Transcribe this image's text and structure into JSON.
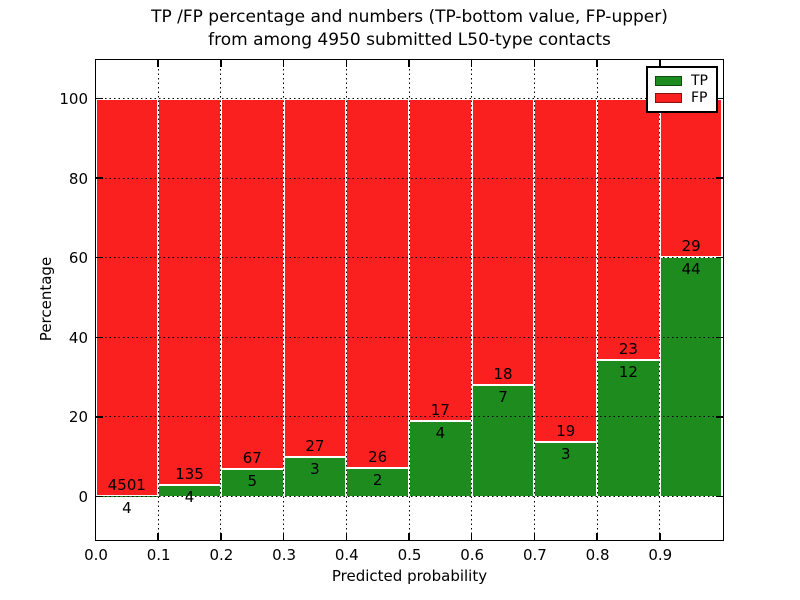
{
  "figure": {
    "title_line1": "TP /FP percentage and numbers (TP-bottom value, FP-upper)",
    "title_line2": "from among 4950 submitted L50-type contacts"
  },
  "chart_data": {
    "type": "bar",
    "subtype": "stacked-percentage",
    "title": "TP /FP percentage and numbers (TP-bottom value, FP-upper) from among 4950 submitted L50-type contacts",
    "xlabel": "Predicted probability",
    "ylabel": "Percentage",
    "xlim": [
      0.0,
      1.0
    ],
    "ylim": [
      -10.8,
      109.8
    ],
    "x_ticks": [
      "0.0",
      "0.1",
      "0.2",
      "0.3",
      "0.4",
      "0.5",
      "0.6",
      "0.7",
      "0.8",
      "0.9"
    ],
    "y_ticks": [
      0,
      20,
      40,
      60,
      80,
      100
    ],
    "grid": "dotted",
    "total_contacts": 4950,
    "legend_position": "upper-right",
    "series": [
      {
        "name": "TP",
        "color": "#1e8b1e",
        "values": [
          4,
          4,
          5,
          3,
          2,
          4,
          7,
          3,
          12,
          44
        ]
      },
      {
        "name": "FP",
        "color": "#fa2020",
        "values": [
          4501,
          135,
          67,
          27,
          26,
          17,
          18,
          19,
          23,
          29
        ]
      }
    ],
    "bins": [
      {
        "range": [
          0.0,
          0.1
        ],
        "tp": 4,
        "fp": 4501
      },
      {
        "range": [
          0.1,
          0.2
        ],
        "tp": 4,
        "fp": 135
      },
      {
        "range": [
          0.2,
          0.3
        ],
        "tp": 5,
        "fp": 67
      },
      {
        "range": [
          0.3,
          0.4
        ],
        "tp": 3,
        "fp": 27
      },
      {
        "range": [
          0.4,
          0.5
        ],
        "tp": 2,
        "fp": 26
      },
      {
        "range": [
          0.5,
          0.6
        ],
        "tp": 4,
        "fp": 17
      },
      {
        "range": [
          0.6,
          0.7
        ],
        "tp": 7,
        "fp": 18
      },
      {
        "range": [
          0.7,
          0.8
        ],
        "tp": 3,
        "fp": 19
      },
      {
        "range": [
          0.8,
          0.9
        ],
        "tp": 12,
        "fp": 23
      },
      {
        "range": [
          0.9,
          1.0
        ],
        "tp": 44,
        "fp": 29
      }
    ],
    "colors": {
      "tp": "#1e8b1e",
      "fp": "#fa2020",
      "grid": "#000000",
      "background": "#ffffff"
    }
  }
}
